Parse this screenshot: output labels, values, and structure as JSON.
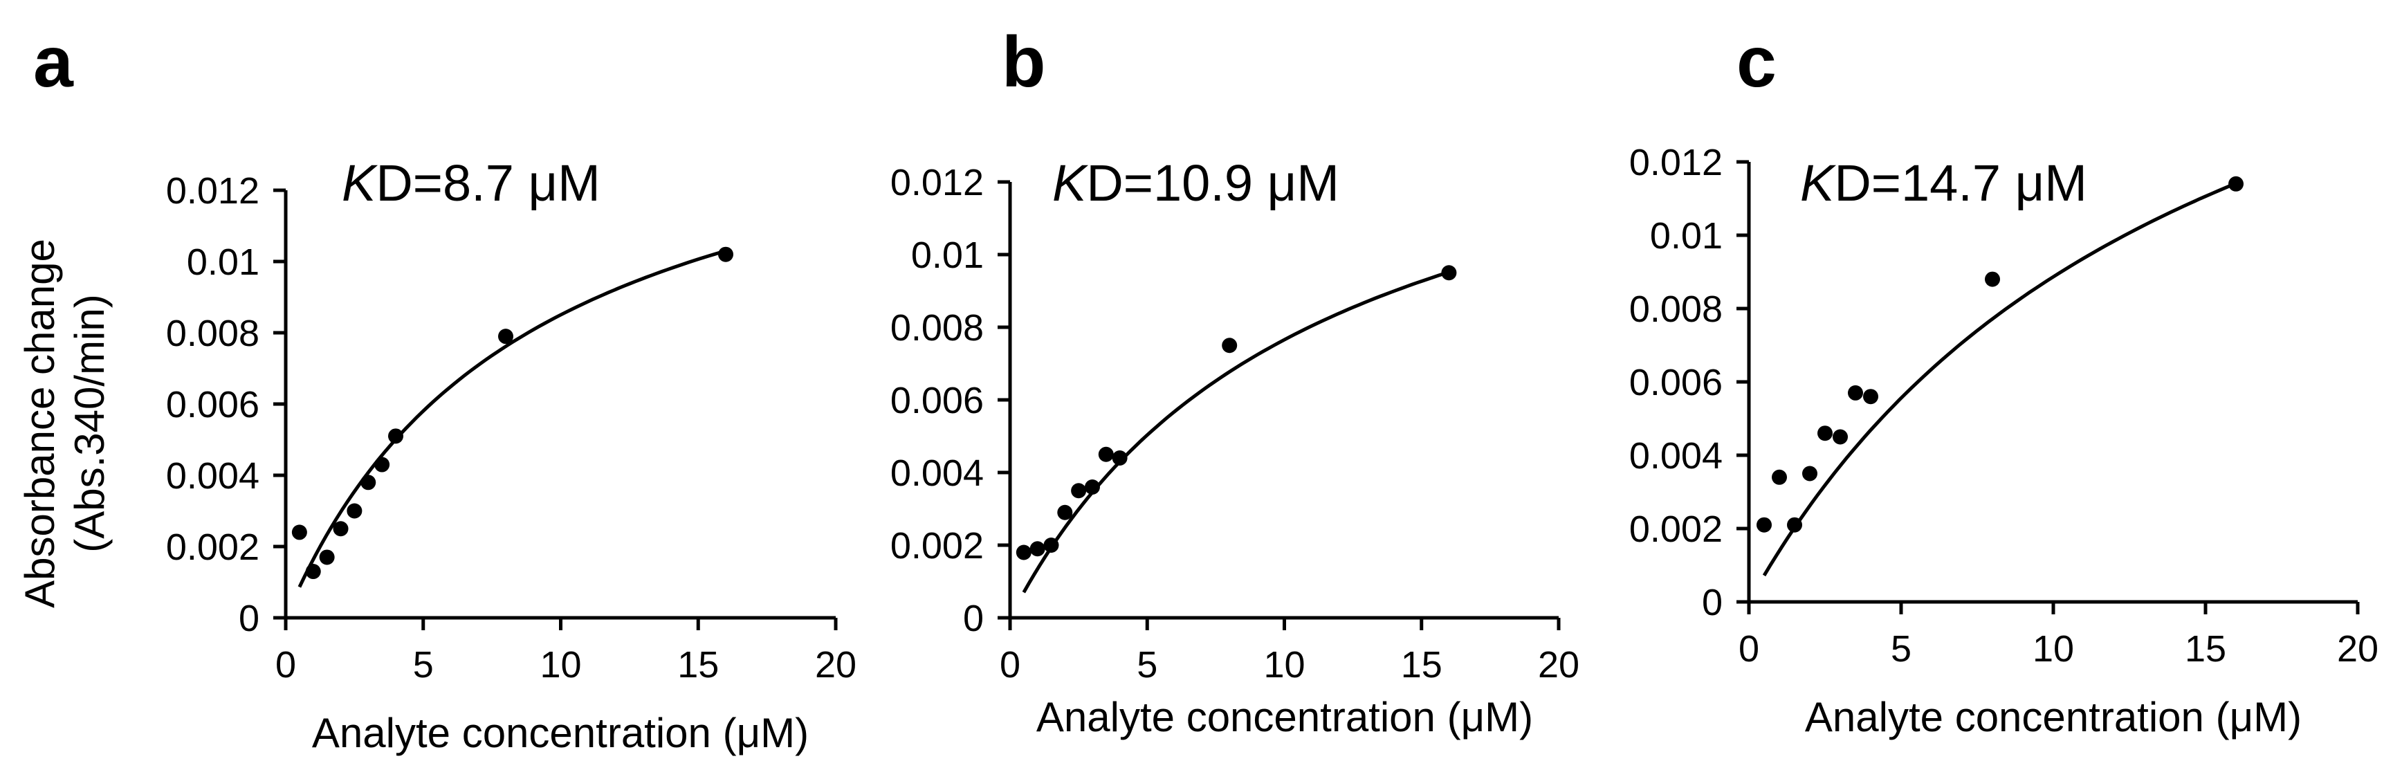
{
  "figure": {
    "y_axis_title_lines": [
      "Absorbance change",
      "(Abs.340/min)"
    ]
  },
  "chart_data": [
    {
      "type": "scatter",
      "panel_label": "a",
      "annotation": {
        "italic": "K",
        "rest": "D=8.7 μM"
      },
      "xlabel": "Analyte concentration (μM)",
      "xlim": [
        0,
        20
      ],
      "x_ticks": [
        "0",
        "5",
        "10",
        "15",
        "20"
      ],
      "ylim": [
        0,
        0.012
      ],
      "y_ticks": [
        "0",
        "0.002",
        "0.004",
        "0.006",
        "0.008",
        "0.01",
        "0.012"
      ],
      "grid": false,
      "series": [
        {
          "x": [
            0.5,
            1.0,
            1.5,
            2.0,
            2.5,
            3.0,
            3.5,
            4.0,
            8.0,
            16.0
          ],
          "y": [
            0.0024,
            0.0013,
            0.0017,
            0.0025,
            0.003,
            0.0038,
            0.0043,
            0.0051,
            0.0079,
            0.0102
          ]
        }
      ],
      "fit": {
        "model": "saturation",
        "kd": 8.7,
        "bmax": 0.0159,
        "x_range": [
          0.5,
          16
        ]
      }
    },
    {
      "type": "scatter",
      "panel_label": "b",
      "annotation": {
        "italic": "K",
        "rest": "D=10.9 μM"
      },
      "xlabel": "Analyte concentration (μM)",
      "xlim": [
        0,
        20
      ],
      "x_ticks": [
        "0",
        "5",
        "10",
        "15",
        "20"
      ],
      "ylim": [
        0,
        0.012
      ],
      "y_ticks": [
        "0",
        "0.002",
        "0.004",
        "0.006",
        "0.008",
        "0.01",
        "0.012"
      ],
      "grid": false,
      "series": [
        {
          "x": [
            0.5,
            1.0,
            1.5,
            2.0,
            2.5,
            3.0,
            3.5,
            4.0,
            8.0,
            16.0
          ],
          "y": [
            0.0018,
            0.0019,
            0.002,
            0.0029,
            0.0035,
            0.0036,
            0.0045,
            0.0044,
            0.0075,
            0.0095
          ]
        }
      ],
      "fit": {
        "model": "saturation",
        "kd": 10.9,
        "bmax": 0.016,
        "x_range": [
          0.5,
          16
        ]
      }
    },
    {
      "type": "scatter",
      "panel_label": "c",
      "annotation": {
        "italic": "K",
        "rest": "D=14.7 μM"
      },
      "xlabel": "Analyte concentration (μM)",
      "xlim": [
        0,
        20
      ],
      "x_ticks": [
        "0",
        "5",
        "10",
        "15",
        "20"
      ],
      "ylim": [
        0,
        0.012
      ],
      "y_ticks": [
        "0",
        "0.002",
        "0.004",
        "0.006",
        "0.008",
        "0.01",
        "0.012"
      ],
      "grid": false,
      "series": [
        {
          "x": [
            0.5,
            1.0,
            1.5,
            2.0,
            2.5,
            3.0,
            3.5,
            4.0,
            8.0,
            16.0
          ],
          "y": [
            0.0021,
            0.0034,
            0.0021,
            0.0035,
            0.0046,
            0.0045,
            0.0057,
            0.0056,
            0.0088,
            0.0114
          ]
        }
      ],
      "fit": {
        "model": "saturation",
        "kd": 14.7,
        "bmax": 0.0219,
        "x_range": [
          0.5,
          16
        ]
      }
    }
  ]
}
